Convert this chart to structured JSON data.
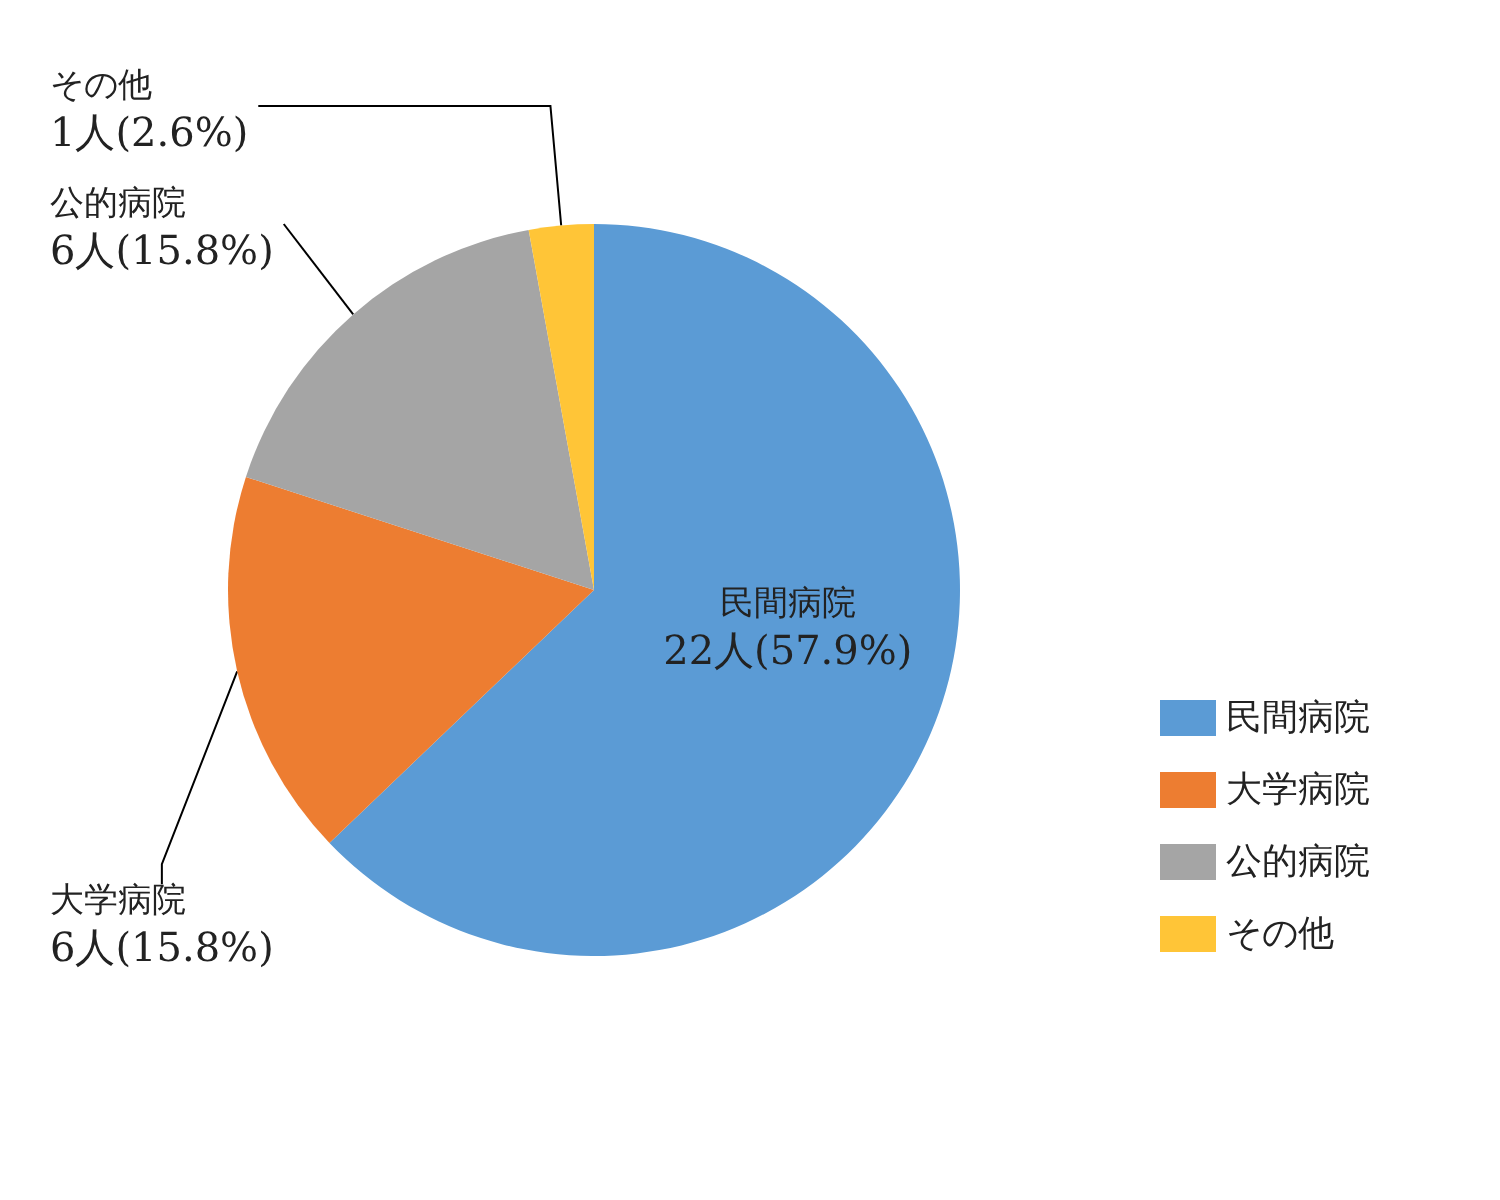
{
  "chart_data": {
    "type": "pie",
    "categories": [
      "民間病院",
      "大学病院",
      "公的病院",
      "その他"
    ],
    "values": [
      22,
      6,
      6,
      1
    ],
    "colors": [
      "#5b9bd5",
      "#ed7d31",
      "#a5a5a5",
      "#ffc537"
    ],
    "value_labels": [
      "22人(57.9%)",
      "6人(15.8%)",
      "6人(15.8%)",
      "1人(2.6%)"
    ],
    "legend": "right"
  }
}
